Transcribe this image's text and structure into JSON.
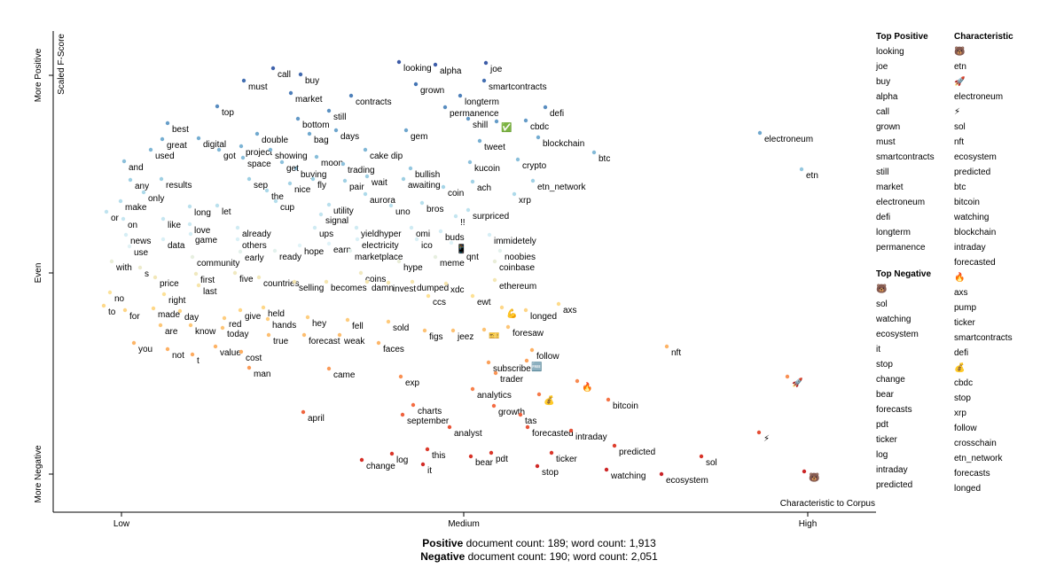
{
  "chart_data": {
    "type": "scatter",
    "x_label": "Characteristic to Corpus",
    "y_label": "Scaled F-Score",
    "xlim": [
      0,
      928
    ],
    "ylim": [
      0,
      543
    ],
    "xticks": [
      {
        "value": 77,
        "label": "Low"
      },
      {
        "value": 463,
        "label": "Medium"
      },
      {
        "value": 851,
        "label": "High"
      }
    ],
    "yticks": [
      {
        "value": 43,
        "label": "More Negative"
      },
      {
        "value": 270,
        "label": "Even"
      },
      {
        "value": 493,
        "label": "More Positive"
      }
    ],
    "colorscale": [
      "#a50026",
      "#d73027",
      "#f46d43",
      "#fdae61",
      "#fee090",
      "#e0f3f8",
      "#abd9e9",
      "#74add1",
      "#4575b4",
      "#313695"
    ],
    "words": [
      "looking",
      "alpha",
      "joe",
      "call",
      "buy",
      "must",
      "grown",
      "smartcontracts",
      "market",
      "contracts",
      "top",
      "longterm",
      "permanence",
      "defi",
      "still",
      "bottom",
      "shill",
      "cbdc",
      "best",
      "days",
      "gem",
      "double",
      "bag",
      "blockchain",
      "great",
      "digital",
      "tweet",
      "used",
      "got",
      "project",
      "showing",
      "cake dip",
      "moon",
      "space",
      "btc",
      "electroneum",
      "and",
      "buying",
      "trading",
      "kucoin",
      "crypto",
      "get",
      "bullish",
      "etn",
      "any",
      "results",
      "sep",
      "fly",
      "pair",
      "wait",
      "awaiting",
      "nice",
      "ach",
      "etn_network",
      "coin",
      "only",
      "the",
      "aurora",
      "xrp",
      "make",
      "cup",
      "bros",
      "utility",
      "long",
      "let",
      "uno",
      "surpriced",
      "or",
      "signal",
      "!!",
      "like",
      "on",
      "love",
      "already",
      "ups",
      "yieldhyper",
      "omi",
      "buds",
      "news",
      "game",
      "immidetely",
      "others",
      "electricity",
      "ico",
      "data",
      "earn",
      "hope",
      "use",
      "early",
      "ready",
      "marketplace",
      "qnt",
      "noobies",
      "community",
      "meme",
      "hype",
      "coinbase",
      "with",
      "s",
      "five",
      "coins",
      "first",
      "price",
      "countries",
      "ethereum",
      "selling",
      "becomes",
      "damn",
      "invest",
      "dumped",
      "xdc",
      "last",
      "no",
      "right",
      "ccs",
      "ewt",
      "axs",
      "to",
      "day",
      "made",
      "for",
      "give",
      "held",
      "longed",
      "red",
      "hands",
      "hey",
      "fell",
      "sold",
      "are",
      "know",
      "foresaw",
      "today",
      "figs",
      "jeez",
      "true",
      "forecast",
      "weak",
      "faces",
      "you",
      "value",
      "nft",
      "not",
      "follow",
      "cost",
      "t",
      "subscribe",
      "man",
      "came",
      "trader",
      "exp",
      "analytics",
      "bitcoin",
      "charts",
      "growth",
      "april",
      "september",
      "tas",
      "analyst",
      "forecasted",
      "intraday",
      "predicted",
      "this",
      "log",
      "pdt",
      "ticker",
      "sol",
      "bear",
      "change",
      "it",
      "stop",
      "watching",
      "ecosystem",
      "✅",
      "📱",
      "💪",
      "🎫",
      "🆓",
      "💰",
      "🔥",
      "🚀",
      "⚡",
      "🐻"
    ],
    "x": [
      390,
      431,
      488,
      248,
      279,
      215,
      409,
      486,
      268,
      336,
      185,
      459,
      442,
      555,
      311,
      276,
      468,
      533,
      129,
      319,
      398,
      230,
      289,
      547,
      123,
      164,
      481,
      110,
      187,
      212,
      245,
      352,
      297,
      214,
      610,
      797,
      80,
      274,
      327,
      470,
      524,
      258,
      403,
      844,
      87,
      122,
      221,
      293,
      329,
      354,
      395,
      267,
      473,
      541,
      440,
      102,
      241,
      352,
      520,
      76,
      251,
      416,
      311,
      154,
      185,
      381,
      468,
      60,
      302,
      454,
      124,
      79,
      154,
      208,
      295,
      342,
      404,
      437,
      82,
      155,
      492,
      208,
      343,
      410,
      124,
      311,
      278,
      86,
      211,
      250,
      335,
      461,
      504,
      157,
      431,
      390,
      498,
      66,
      98,
      205,
      347,
      161,
      115,
      232,
      498,
      272,
      308,
      354,
      378,
      405,
      443,
      164,
      64,
      125,
      423,
      473,
      570,
      57,
      143,
      113,
      81,
      211,
      237,
      533,
      193,
      242,
      287,
      332,
      378,
      121,
      155,
      513,
      191,
      419,
      451,
      243,
      283,
      323,
      367,
      91,
      183,
      692,
      129,
      540,
      212,
      157,
      491,
      221,
      311,
      499,
      392,
      473,
      626,
      406,
      497,
      282,
      394,
      527,
      447,
      535,
      584,
      633,
      422,
      382,
      494,
      562,
      731,
      471,
      348,
      417,
      546,
      624,
      686,
      500,
      449,
      506,
      486,
      534,
      548,
      591,
      828,
      796,
      847
    ],
    "y": [
      508,
      505,
      507,
      501,
      494,
      487,
      483,
      487,
      473,
      470,
      458,
      470,
      457,
      457,
      453,
      444,
      444,
      442,
      439,
      431,
      431,
      427,
      427,
      423,
      421,
      422,
      419,
      409,
      409,
      413,
      409,
      409,
      401,
      400,
      406,
      428,
      396,
      388,
      393,
      395,
      398,
      395,
      388,
      387,
      375,
      376,
      376,
      376,
      374,
      379,
      376,
      371,
      373,
      374,
      367,
      361,
      363,
      359,
      359,
      351,
      351,
      349,
      347,
      345,
      346,
      346,
      341,
      339,
      336,
      334,
      331,
      331,
      325,
      321,
      321,
      321,
      321,
      317,
      313,
      314,
      313,
      308,
      308,
      308,
      308,
      303,
      301,
      300,
      294,
      295,
      295,
      295,
      295,
      288,
      288,
      283,
      283,
      283,
      276,
      270,
      270,
      269,
      265,
      265,
      262,
      260,
      260,
      260,
      259,
      260,
      258,
      256,
      248,
      246,
      244,
      244,
      235,
      233,
      227,
      230,
      228,
      228,
      231,
      228,
      219,
      218,
      220,
      217,
      215,
      211,
      211,
      209,
      208,
      205,
      205,
      200,
      200,
      200,
      191,
      191,
      187,
      187,
      184,
      183,
      181,
      178,
      169,
      163,
      162,
      157,
      153,
      139,
      127,
      121,
      120,
      113,
      110,
      110,
      96,
      96,
      92,
      75,
      71,
      66,
      67,
      67,
      63,
      63,
      59,
      54,
      52,
      48,
      43,
      441,
      304,
      231,
      206,
      171,
      133,
      148,
      153,
      90,
      46
    ]
  },
  "sidebar": [
    {
      "title": "Top Positive",
      "terms": [
        "looking",
        "joe",
        "buy",
        "alpha",
        "call",
        "grown",
        "must",
        "smartcontracts",
        "still",
        "market",
        "electroneum",
        "defi",
        "longterm",
        "permanence"
      ]
    },
    {
      "title": "Top Negative",
      "terms": [
        "🐻",
        "sol",
        "watching",
        "ecosystem",
        "it",
        "stop",
        "change",
        "bear",
        "forecasts",
        "pdt",
        "ticker",
        "log",
        "intraday",
        "predicted"
      ]
    },
    {
      "title": "Characteristic",
      "terms": [
        "🐻",
        "etn",
        "🚀",
        "electroneum",
        "⚡",
        "sol",
        "nft",
        "ecosystem",
        "predicted",
        "btc",
        "bitcoin",
        "watching",
        "blockchain",
        "intraday",
        "forecasted",
        "🔥",
        "axs",
        "pump",
        "ticker",
        "smartcontracts",
        "defi",
        "💰",
        "cbdc",
        "stop",
        "xrp",
        "follow",
        "crosschain",
        "etn_network",
        "forecasts",
        "longed"
      ]
    }
  ],
  "footer": [
    {
      "label": "Positive",
      "text": " document count: 189; word count: 1,913"
    },
    {
      "label": "Negative",
      "text": " document count: 190; word count: 2,051"
    }
  ]
}
